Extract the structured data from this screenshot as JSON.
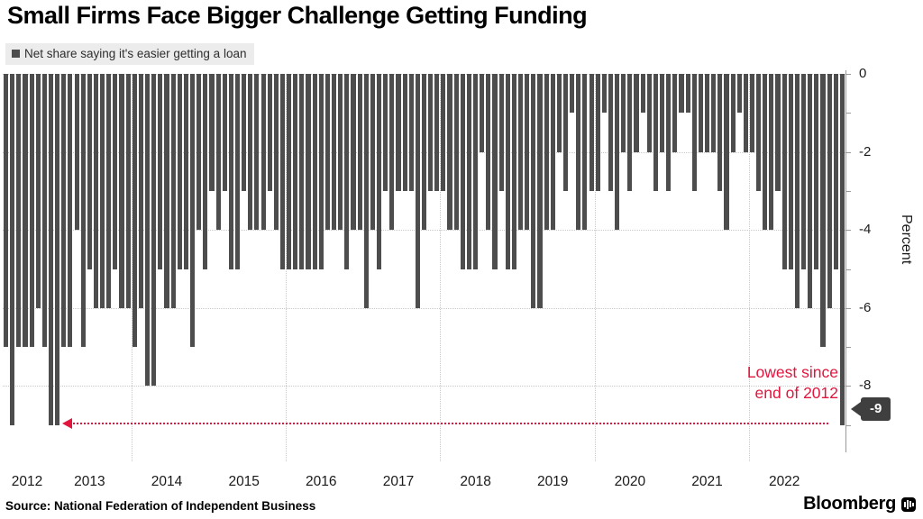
{
  "title": "Small Firms Face Bigger Challenge Getting Funding",
  "legend": {
    "label": "Net share saying it's easier getting a loan",
    "swatch_color": "#4d4d4d"
  },
  "annotation": {
    "line1": "Lowest since",
    "line2": "end of 2012",
    "color": "#e0163f"
  },
  "last_value_badge": "-9",
  "y_axis_label": "Percent",
  "source": "Source:  National Federation of Independent Business",
  "brand": {
    "name": "Bloomberg",
    "icon": "bloomberg-chart-icon"
  },
  "colors": {
    "bar": "#4d4d4d",
    "accent_red": "#e0163f",
    "legend_bg": "#ececec",
    "badge_bg": "#3f3f3f"
  },
  "chart_data": {
    "type": "bar",
    "title": "Small Firms Face Bigger Challenge Getting Funding",
    "legend": "Net share saying it's easier getting a loan",
    "frequency": "monthly",
    "x_start": "2012-01",
    "x_end": "2022-11",
    "xlabel": "",
    "ylabel": "Percent",
    "ylim": [
      -9.9,
      0
    ],
    "yticks": [
      0,
      -2,
      -4,
      -6,
      -8
    ],
    "ytick_labels": [
      "0",
      "-2",
      "-4",
      "-6",
      "-8"
    ],
    "minor_ytick_step": 1,
    "grid": "dotted",
    "vertical_gridline_month_indices": [
      20,
      44,
      68,
      92,
      116
    ],
    "year_labels": [
      "2012",
      "2013",
      "2014",
      "2015",
      "2016",
      "2017",
      "2018",
      "2019",
      "2020",
      "2021",
      "2022"
    ],
    "values": [
      -7,
      -9,
      -7,
      -7,
      -7,
      -6,
      -7,
      -9,
      -9,
      -7,
      -7,
      -4,
      -7,
      -5,
      -6,
      -6,
      -6,
      -5,
      -6,
      -6,
      -7,
      -6,
      -8,
      -8,
      -5,
      -6,
      -6,
      -5,
      -5,
      -7,
      -4,
      -5,
      -3,
      -4,
      -3,
      -5,
      -5,
      -3,
      -4,
      -4,
      -4,
      -3,
      -4,
      -5,
      -5,
      -5,
      -5,
      -5,
      -5,
      -5,
      -4,
      -4,
      -4,
      -5,
      -4,
      -4,
      -6,
      -4,
      -5,
      -3,
      -4,
      -3,
      -3,
      -3,
      -6,
      -4,
      -3,
      -3,
      -3,
      -4,
      -4,
      -5,
      -5,
      -5,
      -2,
      -4,
      -5,
      -3,
      -5,
      -5,
      -4,
      -4,
      -6,
      -6,
      -4,
      -4,
      -2,
      -3,
      -1,
      -4,
      -4,
      -3,
      -3,
      -1,
      -3,
      -4,
      -2,
      -3,
      -2,
      -1,
      -2,
      -3,
      -2,
      -3,
      -2,
      -1,
      -1,
      -3,
      -2,
      -2,
      -2,
      -3,
      -4,
      -2,
      -1,
      -2,
      -2,
      -3,
      -4,
      -4,
      -3,
      -5,
      -5,
      -6,
      -5,
      -6,
      -5,
      -7,
      -6,
      -5,
      -9
    ],
    "annotation": {
      "text": "Lowest since end of 2012",
      "points_to_value": -9,
      "last_value": -9
    }
  }
}
